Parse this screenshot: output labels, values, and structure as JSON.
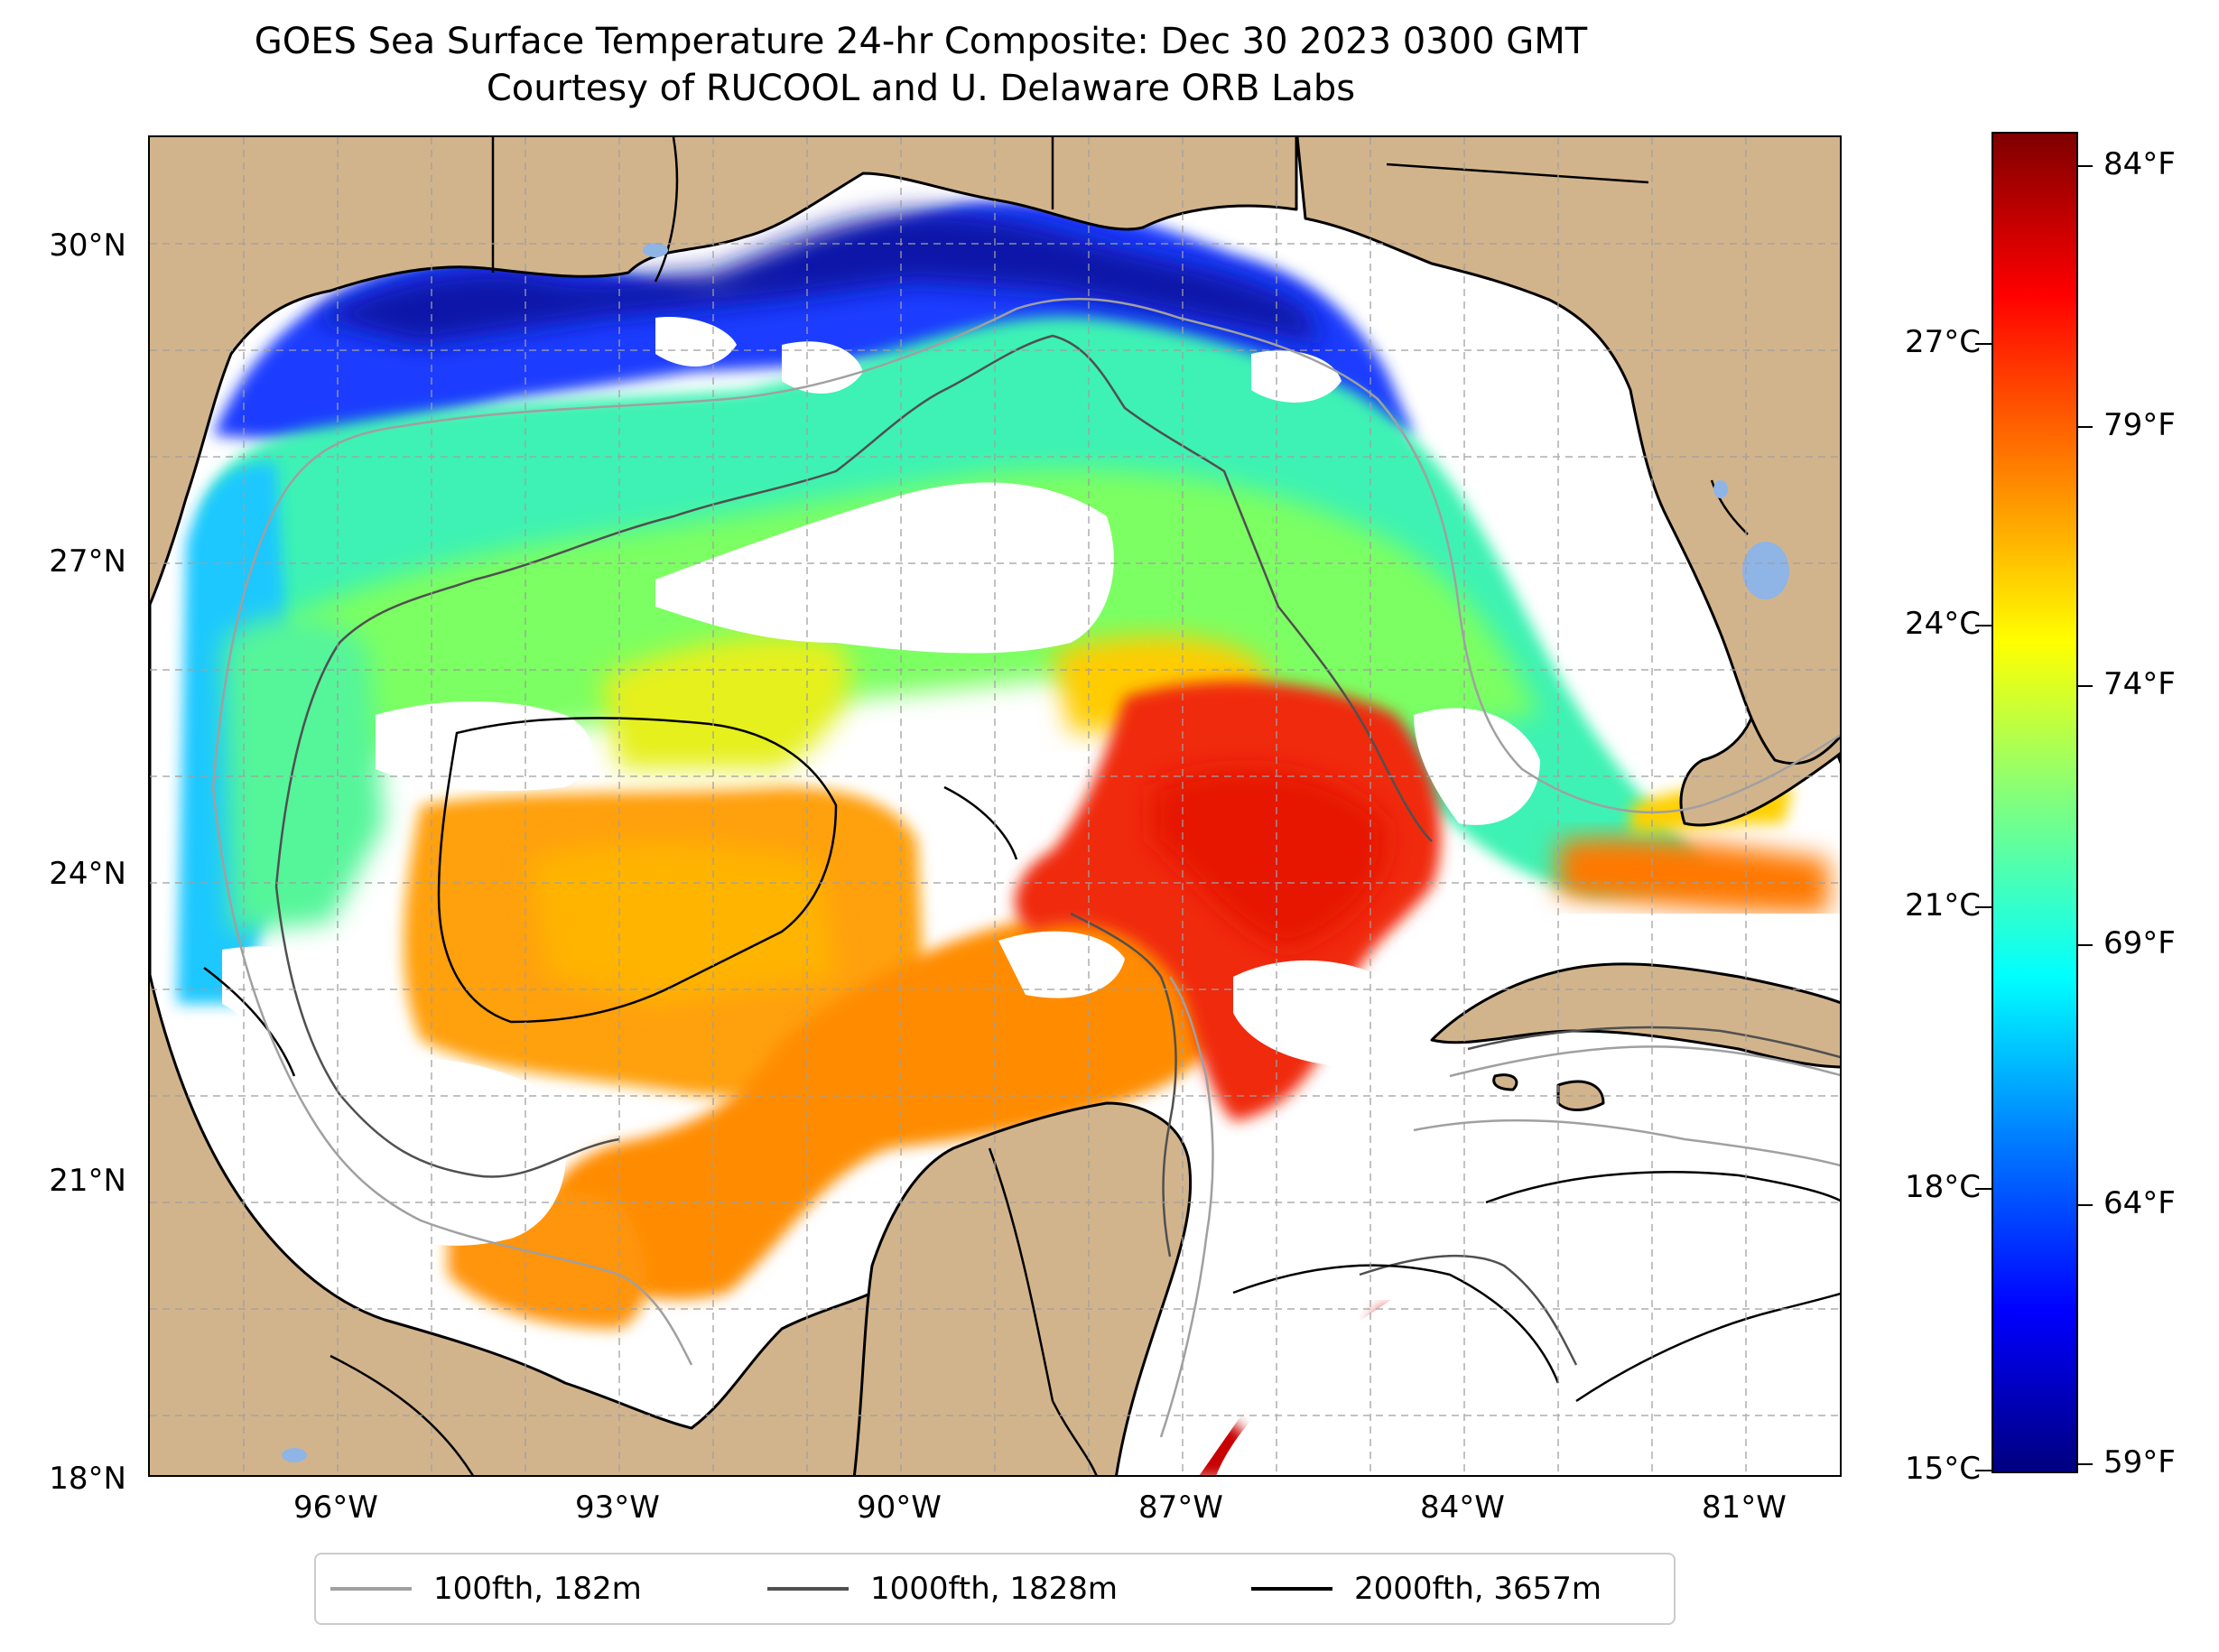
{
  "title": {
    "line1": "GOES Sea Surface Temperature 24-hr Composite: Dec 30 2023 0300 GMT",
    "line2": "Courtesy of RUCOOL and U. Delaware ORB Labs"
  },
  "map": {
    "lat_ticks": [
      "30°N",
      "27°N",
      "24°N",
      "21°N",
      "18°N"
    ],
    "lon_ticks": [
      "96°W",
      "93°W",
      "90°W",
      "87°W",
      "84°W",
      "81°W"
    ],
    "colors": {
      "land": "#d2b48c",
      "water_nodata": "#ffffff",
      "grid": "#a0a0a0",
      "coast": "#000000"
    }
  },
  "colorbar": {
    "fahrenheit_ticks": [
      "84°F",
      "79°F",
      "74°F",
      "69°F",
      "64°F",
      "59°F"
    ],
    "celsius_ticks": [
      "27°C",
      "24°C",
      "21°C",
      "18°C",
      "15°C"
    ],
    "colormap": "jet"
  },
  "legend": {
    "items": [
      {
        "label": "100fth, 182m",
        "color": "#a0a0a0"
      },
      {
        "label": "1000fth, 1828m",
        "color": "#505050"
      },
      {
        "label": "2000fth, 3657m",
        "color": "#000000"
      }
    ]
  }
}
